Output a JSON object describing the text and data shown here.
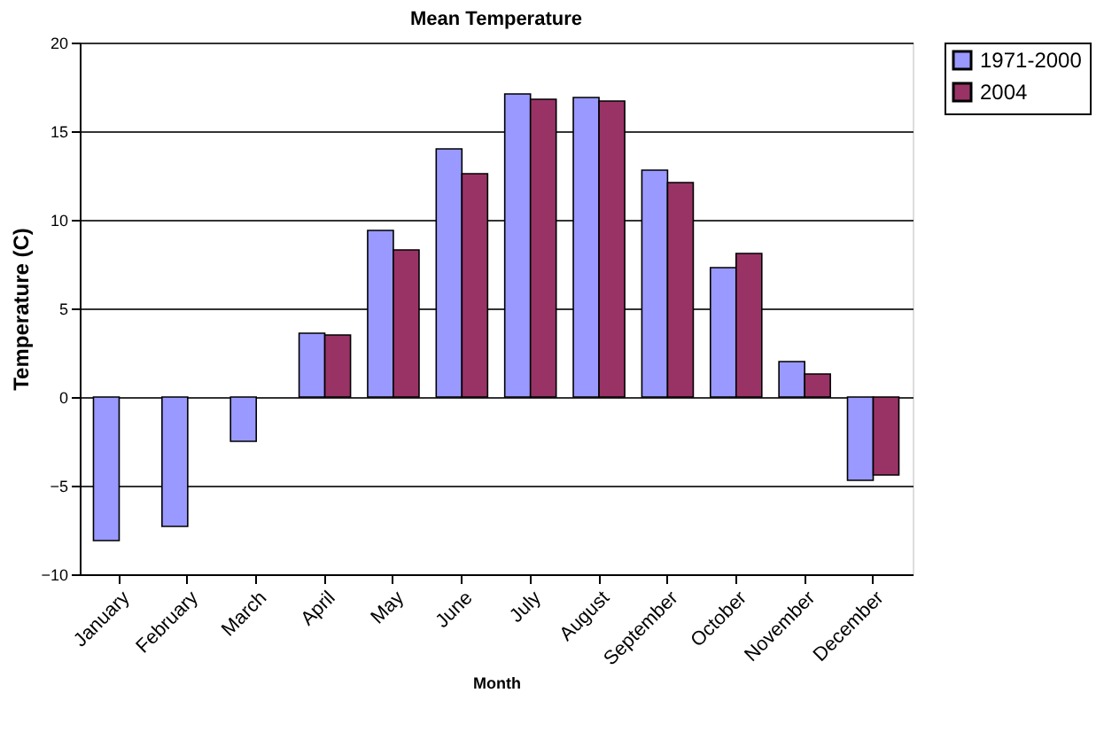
{
  "chart_data": {
    "type": "bar",
    "title": "Mean Temperature",
    "xlabel": "Month",
    "ylabel": "Temperature (C)",
    "categories": [
      "January",
      "February",
      "March",
      "April",
      "May",
      "June",
      "July",
      "August",
      "September",
      "October",
      "November",
      "December"
    ],
    "series": [
      {
        "name": "1971-2000",
        "color": "#9999ff",
        "values": [
          -8.1,
          -7.3,
          -2.5,
          3.6,
          9.4,
          14.0,
          17.1,
          16.9,
          12.8,
          7.3,
          2.0,
          -4.7
        ]
      },
      {
        "name": "2004",
        "color": "#993366",
        "values": [
          null,
          null,
          null,
          3.5,
          8.3,
          12.6,
          16.8,
          16.7,
          12.1,
          8.1,
          1.3,
          -4.4
        ]
      }
    ],
    "ylim": [
      -10,
      20
    ],
    "yticks": [
      -10,
      -5,
      0,
      5,
      10,
      15,
      20
    ],
    "grid": "y",
    "legend": "right"
  }
}
